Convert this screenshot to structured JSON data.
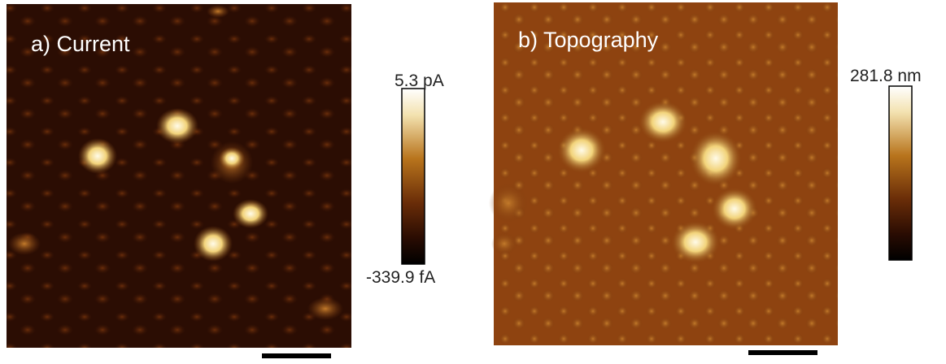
{
  "panels": [
    {
      "label": "a) Current",
      "colorbar": {
        "max": "5.3 pA",
        "min": "-339.9 fA"
      }
    },
    {
      "label": "b) Topography",
      "colorbar": {
        "max": "281.8 nm"
      }
    }
  ]
}
